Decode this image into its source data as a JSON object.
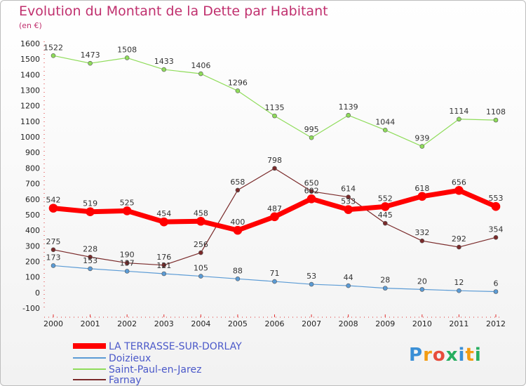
{
  "title": "Evolution du Montant de la Dette par Habitant",
  "subtitle": "(en €)",
  "logo": [
    "P",
    "r",
    "o",
    "x",
    "i",
    "t",
    "i"
  ],
  "chart_data": {
    "type": "line",
    "x": [
      "2000",
      "2001",
      "2002",
      "2003",
      "2004",
      "2005",
      "2006",
      "2007",
      "2008",
      "2009",
      "2010",
      "2011",
      "2012"
    ],
    "ylim": [
      -100,
      1600
    ],
    "yticks": [
      -100,
      0,
      100,
      200,
      300,
      400,
      500,
      600,
      700,
      800,
      900,
      1000,
      1100,
      1200,
      1300,
      1400,
      1500,
      1600
    ],
    "grid": false,
    "legend_position": "bottom-left",
    "series": [
      {
        "name": "LA TERRASSE-SUR-DORLAY",
        "color": "#ff0000",
        "width": 7,
        "values": [
          542,
          519,
          525,
          454,
          458,
          400,
          487,
          602,
          533,
          552,
          618,
          656,
          553
        ]
      },
      {
        "name": "Doizieux",
        "color": "#5b9bd5",
        "width": 1.2,
        "values": [
          173,
          153,
          137,
          121,
          105,
          88,
          71,
          53,
          44,
          28,
          20,
          12,
          6
        ]
      },
      {
        "name": "Saint-Paul-en-Jarez",
        "color": "#8fdc5a",
        "width": 1.2,
        "values": [
          1522,
          1473,
          1508,
          1433,
          1406,
          1296,
          1135,
          995,
          1139,
          1044,
          939,
          1114,
          1108
        ]
      },
      {
        "name": "Farnay",
        "color": "#7a2a2a",
        "width": 1.2,
        "values": [
          275,
          228,
          190,
          176,
          256,
          658,
          798,
          650,
          614,
          445,
          332,
          292,
          354
        ]
      }
    ]
  }
}
